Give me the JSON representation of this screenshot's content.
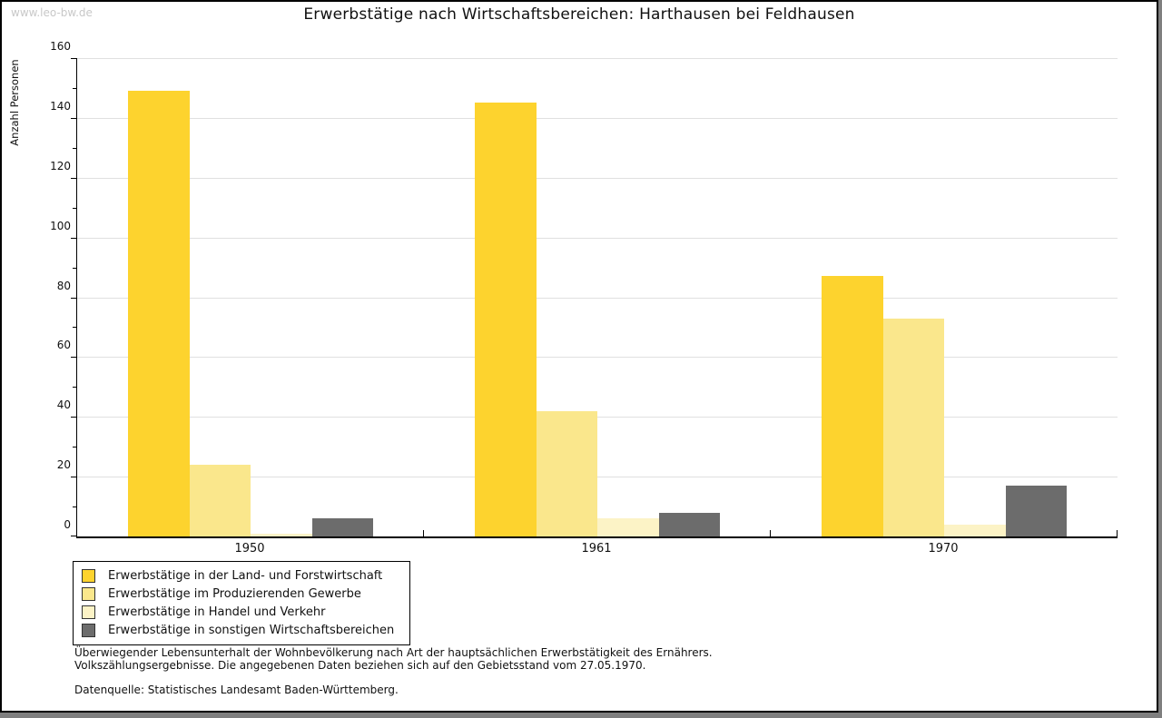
{
  "watermark": "www.leo-bw.de",
  "title": "Erwerbstätige nach Wirtschaftsbereichen: Harthausen bei Feldhausen",
  "chart_data": {
    "type": "bar",
    "categories": [
      "1950",
      "1961",
      "1970"
    ],
    "series": [
      {
        "name": "Erwerbstätige in der Land- und Forstwirtschaft",
        "color": "#FDD32E",
        "values": [
          149,
          145,
          87
        ]
      },
      {
        "name": "Erwerbstätige im Produzierenden Gewerbe",
        "color": "#FAE78C",
        "values": [
          24,
          42,
          73
        ]
      },
      {
        "name": "Erwerbstätige in Handel und Verkehr",
        "color": "#FCF3C6",
        "values": [
          1,
          6,
          4
        ]
      },
      {
        "name": "Erwerbstätige in sonstigen Wirtschaftsbereichen",
        "color": "#6C6C6C",
        "values": [
          6,
          8,
          17
        ]
      }
    ],
    "title": "Erwerbstätige nach Wirtschaftsbereichen: Harthausen bei Feldhausen",
    "xlabel": "",
    "ylabel": "Anzahl Personen",
    "ylim": [
      0,
      160
    ],
    "ytick_step": 20,
    "yminor_step": 10,
    "grid": true,
    "legend_position": "bottom-left",
    "colors": {
      "gridline": "#e0e0e0",
      "axis": "#000000",
      "background": "#ffffff",
      "watermark_text": "#c8c8c8"
    }
  },
  "footnotes": {
    "line1": "Überwiegender Lebensunterhalt der Wohnbevölkerung nach Art der hauptsächlichen Erwerbstätigkeit des Ernährers.",
    "line2": "Volkszählungsergebnisse. Die angegebenen Daten beziehen sich auf den Gebietsstand vom 27.05.1970.",
    "source": "Datenquelle: Statistisches Landesamt Baden-Württemberg."
  }
}
